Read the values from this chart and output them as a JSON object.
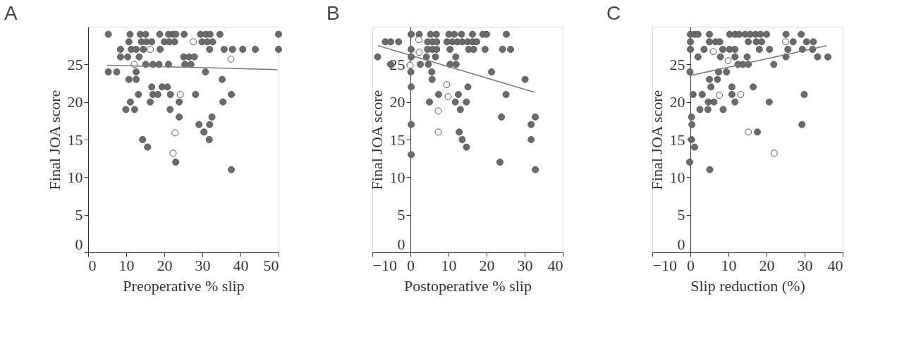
{
  "chart_data": [
    {
      "type": "scatter",
      "title": "A",
      "xlabel": "Preoperative % slip",
      "ylabel": "Final JOA score",
      "xlim": [
        0,
        50
      ],
      "ylim": [
        0,
        30
      ],
      "xticks": [
        0,
        10,
        20,
        30,
        40,
        50
      ],
      "yticks": [
        0,
        5,
        10,
        15,
        20,
        25
      ],
      "grid": false,
      "series": [
        {
          "color": "#6b6b6b",
          "marker": "circle",
          "x": [
            5.3,
            11.0,
            13.7,
            15.1,
            18.8,
            21.1,
            22.2,
            23.0,
            25.2,
            29.5,
            30.9,
            32.0,
            34.6,
            50,
            10.7,
            14.0,
            15.3,
            16.7,
            20.0,
            21.3,
            22.7,
            29.9,
            31.3,
            32.7,
            8.5,
            11.3,
            12.6,
            14.5,
            18.9,
            31.9,
            35.7,
            37.9,
            40.6,
            43.9,
            50,
            8.5,
            10.4,
            13.4,
            25.1,
            26.5,
            27.9,
            15.1,
            17.0,
            18.6,
            21.1,
            25.4,
            27.0,
            5.3,
            7.5,
            12.6,
            30.8,
            10.7,
            12.6,
            35.2,
            16.7,
            19.4,
            20.8,
            13.2,
            17.0,
            18.3,
            21.6,
            28.2,
            37.6,
            11.1,
            16.3,
            23.9,
            35.4,
            9.9,
            12.2,
            21.5,
            23.9,
            32.5,
            29.1,
            31.9,
            30.4,
            14.3,
            31.8,
            15.6,
            23.0,
            37.6
          ],
          "values": [
            29,
            29,
            29,
            29,
            29,
            29,
            29,
            29,
            29,
            29,
            29,
            29,
            29,
            29,
            28,
            28,
            28,
            28,
            28,
            28,
            28,
            28,
            28,
            28,
            27,
            27,
            27,
            27,
            27,
            27,
            27,
            27,
            27,
            27,
            27,
            26,
            26,
            26,
            26,
            26,
            26,
            25,
            25,
            25,
            25,
            25,
            25,
            24,
            24,
            24,
            24,
            23,
            23,
            23,
            22,
            22,
            22,
            21,
            21,
            21,
            21,
            21,
            21,
            20,
            20,
            20,
            20,
            19,
            19,
            19,
            18,
            18,
            17,
            17,
            16,
            15,
            15,
            14,
            12,
            11
          ]
        },
        {
          "color": "#ffffff",
          "marker": "circle",
          "x": [
            12.1,
            16.3,
            27.6,
            37.5,
            24.2,
            22.8,
            22.3
          ],
          "values": [
            25,
            27,
            28,
            25.7,
            21,
            15.9,
            13.2
          ]
        },
        {
          "type": "line",
          "color": "#777777",
          "marker": "none",
          "line_style": "solid",
          "x": [
            5.0,
            49.6
          ],
          "values": [
            24.9,
            24.3
          ]
        }
      ]
    },
    {
      "type": "scatter",
      "title": "B",
      "xlabel": "Postoperative % slip",
      "ylabel": "Final JOA score",
      "xlim": [
        -10,
        40
      ],
      "ylim": [
        0,
        30
      ],
      "xticks": [
        -10,
        0,
        10,
        20,
        30,
        40
      ],
      "yticks": [
        0,
        5,
        10,
        15,
        20,
        25
      ],
      "grid": false,
      "series": [
        {
          "color": "#6b6b6b",
          "marker": "circle",
          "x": [
            0.2,
            2.3,
            5.3,
            6.8,
            10.1,
            11.5,
            13.4,
            16.3,
            19.0,
            20.0,
            25.2,
            -6.6,
            -5.2,
            -3.1,
            4.5,
            5.8,
            6.9,
            9.6,
            11.0,
            12.3,
            13.6,
            15.0,
            16.3,
            17.4,
            0.2,
            4.5,
            5.8,
            6.9,
            10.4,
            15.3,
            16.6,
            19.6,
            24.2,
            26.3,
            -8.6,
            0.2,
            4.2,
            6.6,
            11.9,
            -5.2,
            2.6,
            4.7,
            10.4,
            12.0,
            0.1,
            5.6,
            21.3,
            5.7,
            30.1,
            0.2,
            15.1,
            7.4,
            12.6,
            25.1,
            5.0,
            11.8,
            14.7,
            13.1,
            23.9,
            32.8,
            0.2,
            31.7,
            12.8,
            13.6,
            31.7,
            14.7,
            0.2,
            23.5,
            32.8
          ],
          "values": [
            29,
            29,
            29,
            29,
            29,
            29,
            29,
            29,
            29,
            29,
            29,
            28,
            28,
            28,
            28,
            28,
            28,
            28,
            28,
            28,
            28,
            28,
            28,
            28,
            27,
            27,
            27,
            27,
            27,
            27,
            27,
            27,
            27,
            27,
            26,
            26,
            26,
            26,
            26,
            25,
            25,
            25,
            25,
            25,
            24,
            24,
            24,
            23,
            23,
            22,
            22,
            21,
            21,
            21,
            20,
            20,
            20,
            19,
            18,
            18,
            17,
            17,
            16,
            15,
            15,
            14,
            13,
            12,
            11
          ]
        },
        {
          "color": "#ffffff",
          "marker": "circle",
          "x": [
            2.2,
            2.3,
            -0.1,
            9.5,
            9.9,
            7.3,
            7.3
          ],
          "values": [
            28.3,
            26.6,
            24.9,
            22.3,
            20.7,
            18.8,
            16.0
          ]
        },
        {
          "type": "line",
          "color": "#777777",
          "marker": "none",
          "line_style": "solid",
          "x": [
            -8.5,
            32.5
          ],
          "values": [
            27.5,
            21.3
          ]
        }
      ]
    },
    {
      "type": "scatter",
      "title": "C",
      "xlabel": "Slip reduction (%)",
      "ylabel": "Final JOA score",
      "xlim": [
        -10,
        40
      ],
      "ylim": [
        0,
        30
      ],
      "xticks": [
        -10,
        0,
        10,
        20,
        30,
        40
      ],
      "yticks": [
        0,
        5,
        10,
        15,
        20,
        25
      ],
      "grid": false,
      "series": [
        {
          "color": "#6b6b6b",
          "marker": "circle",
          "x": [
            0,
            1.1,
            2.0,
            5.0,
            10.3,
            11.7,
            12.8,
            14.4,
            15.7,
            17.1,
            18.4,
            20.0,
            25.1,
            29.1,
            0,
            5.0,
            6.6,
            7.7,
            15.2,
            17.3,
            18.7,
            27.0,
            30.5,
            32.3,
            0,
            3.6,
            8.5,
            10.3,
            11.7,
            18.1,
            20.8,
            25.6,
            29.4,
            32.1,
            2.0,
            7.9,
            11.7,
            14.9,
            25.1,
            33.4,
            36.1,
            12.5,
            13.8,
            15.2,
            21.9,
            -0.1,
            7.4,
            9.5,
            5.0,
            7.1,
            5.4,
            10.9,
            16.5,
            0.7,
            3.1,
            10.9,
            29.9,
            4.7,
            6.2,
            11.7,
            20.7,
            2.5,
            4.6,
            8.6,
            0.3,
            0.4,
            29.3,
            17.6,
            0.3,
            1.1,
            -0.2,
            5.1
          ],
          "values": [
            29,
            29,
            29,
            29,
            29,
            29,
            29,
            29,
            29,
            29,
            29,
            29,
            29,
            29,
            28,
            28,
            28,
            28,
            28,
            28,
            28,
            28,
            28,
            28,
            27,
            27,
            27,
            27,
            27,
            27,
            27,
            27,
            27,
            27,
            26,
            26,
            26,
            26,
            26,
            26,
            26,
            25,
            25,
            25,
            25,
            24,
            24,
            24,
            23,
            23,
            22,
            22,
            22,
            21,
            21,
            21,
            21,
            20,
            20,
            20,
            20,
            19,
            19,
            19,
            18,
            17,
            17,
            16,
            15,
            14,
            12,
            11
          ]
        },
        {
          "color": "#ffffff",
          "marker": "circle",
          "x": [
            6.0,
            9.9,
            25.0,
            7.6,
            13.2,
            15.2,
            22.0
          ],
          "values": [
            26.7,
            25.5,
            28.0,
            20.9,
            21.0,
            16.0,
            13.2
          ]
        },
        {
          "type": "line",
          "color": "#777777",
          "marker": "none",
          "line_style": "solid",
          "x": [
            -0.1,
            35.8
          ],
          "values": [
            23.5,
            27.5
          ]
        }
      ]
    }
  ]
}
